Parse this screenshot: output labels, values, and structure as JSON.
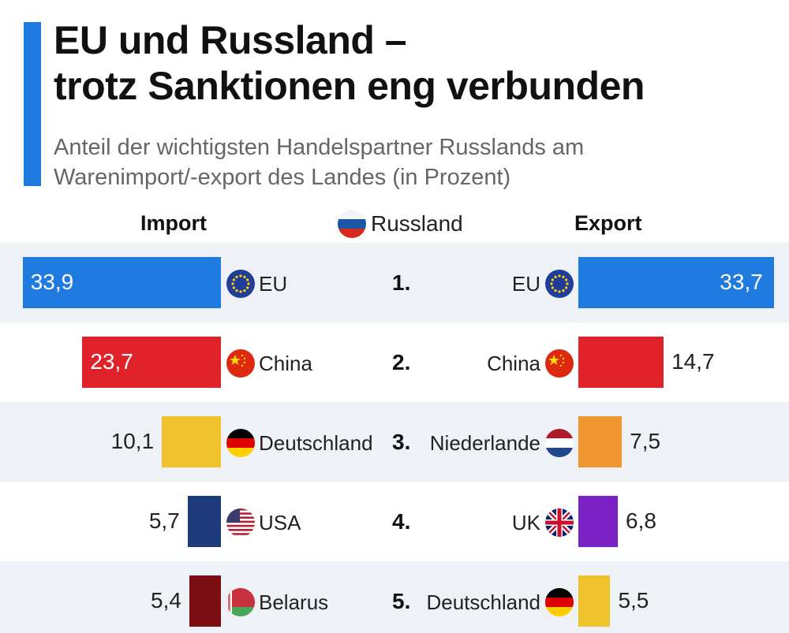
{
  "title_line1": "EU und Russland –",
  "title_line2": "trotz Sanktionen eng verbunden",
  "subtitle_line1": "Anteil der wichtigsten Handelspartner Russlands am",
  "subtitle_line2": "Warenimport/-export des Landes (in Prozent)",
  "header": {
    "import_label": "Import",
    "center_label": "Russland",
    "export_label": "Export"
  },
  "chart_data": {
    "type": "bar",
    "ranks": [
      "1.",
      "2.",
      "3.",
      "4.",
      "5."
    ],
    "series": [
      {
        "name": "Import",
        "categories": [
          "EU",
          "China",
          "Deutschland",
          "USA",
          "Belarus"
        ],
        "labels": [
          "33,9",
          "23,7",
          "10,1",
          "5,7",
          "5,4"
        ],
        "values": [
          33.9,
          23.7,
          10.1,
          5.7,
          5.4
        ],
        "colors": [
          "#1f7be0",
          "#e0232a",
          "#f0c22e",
          "#1d3a7a",
          "#7a0c12"
        ],
        "flags": [
          "eu-flag-icon",
          "china-flag-icon",
          "germany-flag-icon",
          "usa-flag-icon",
          "belarus-flag-icon"
        ]
      },
      {
        "name": "Export",
        "categories": [
          "EU",
          "China",
          "Niederlande",
          "UK",
          "Deutschland"
        ],
        "labels": [
          "33,7",
          "14,7",
          "7,5",
          "6,8",
          "5,5"
        ],
        "values": [
          33.7,
          14.7,
          7.5,
          6.8,
          5.5
        ],
        "colors": [
          "#1f7be0",
          "#e0232a",
          "#f0962e",
          "#7b22c6",
          "#f0c22e"
        ],
        "flags": [
          "eu-flag-icon",
          "china-flag-icon",
          "netherlands-flag-icon",
          "uk-flag-icon",
          "germany-flag-icon"
        ]
      }
    ]
  }
}
